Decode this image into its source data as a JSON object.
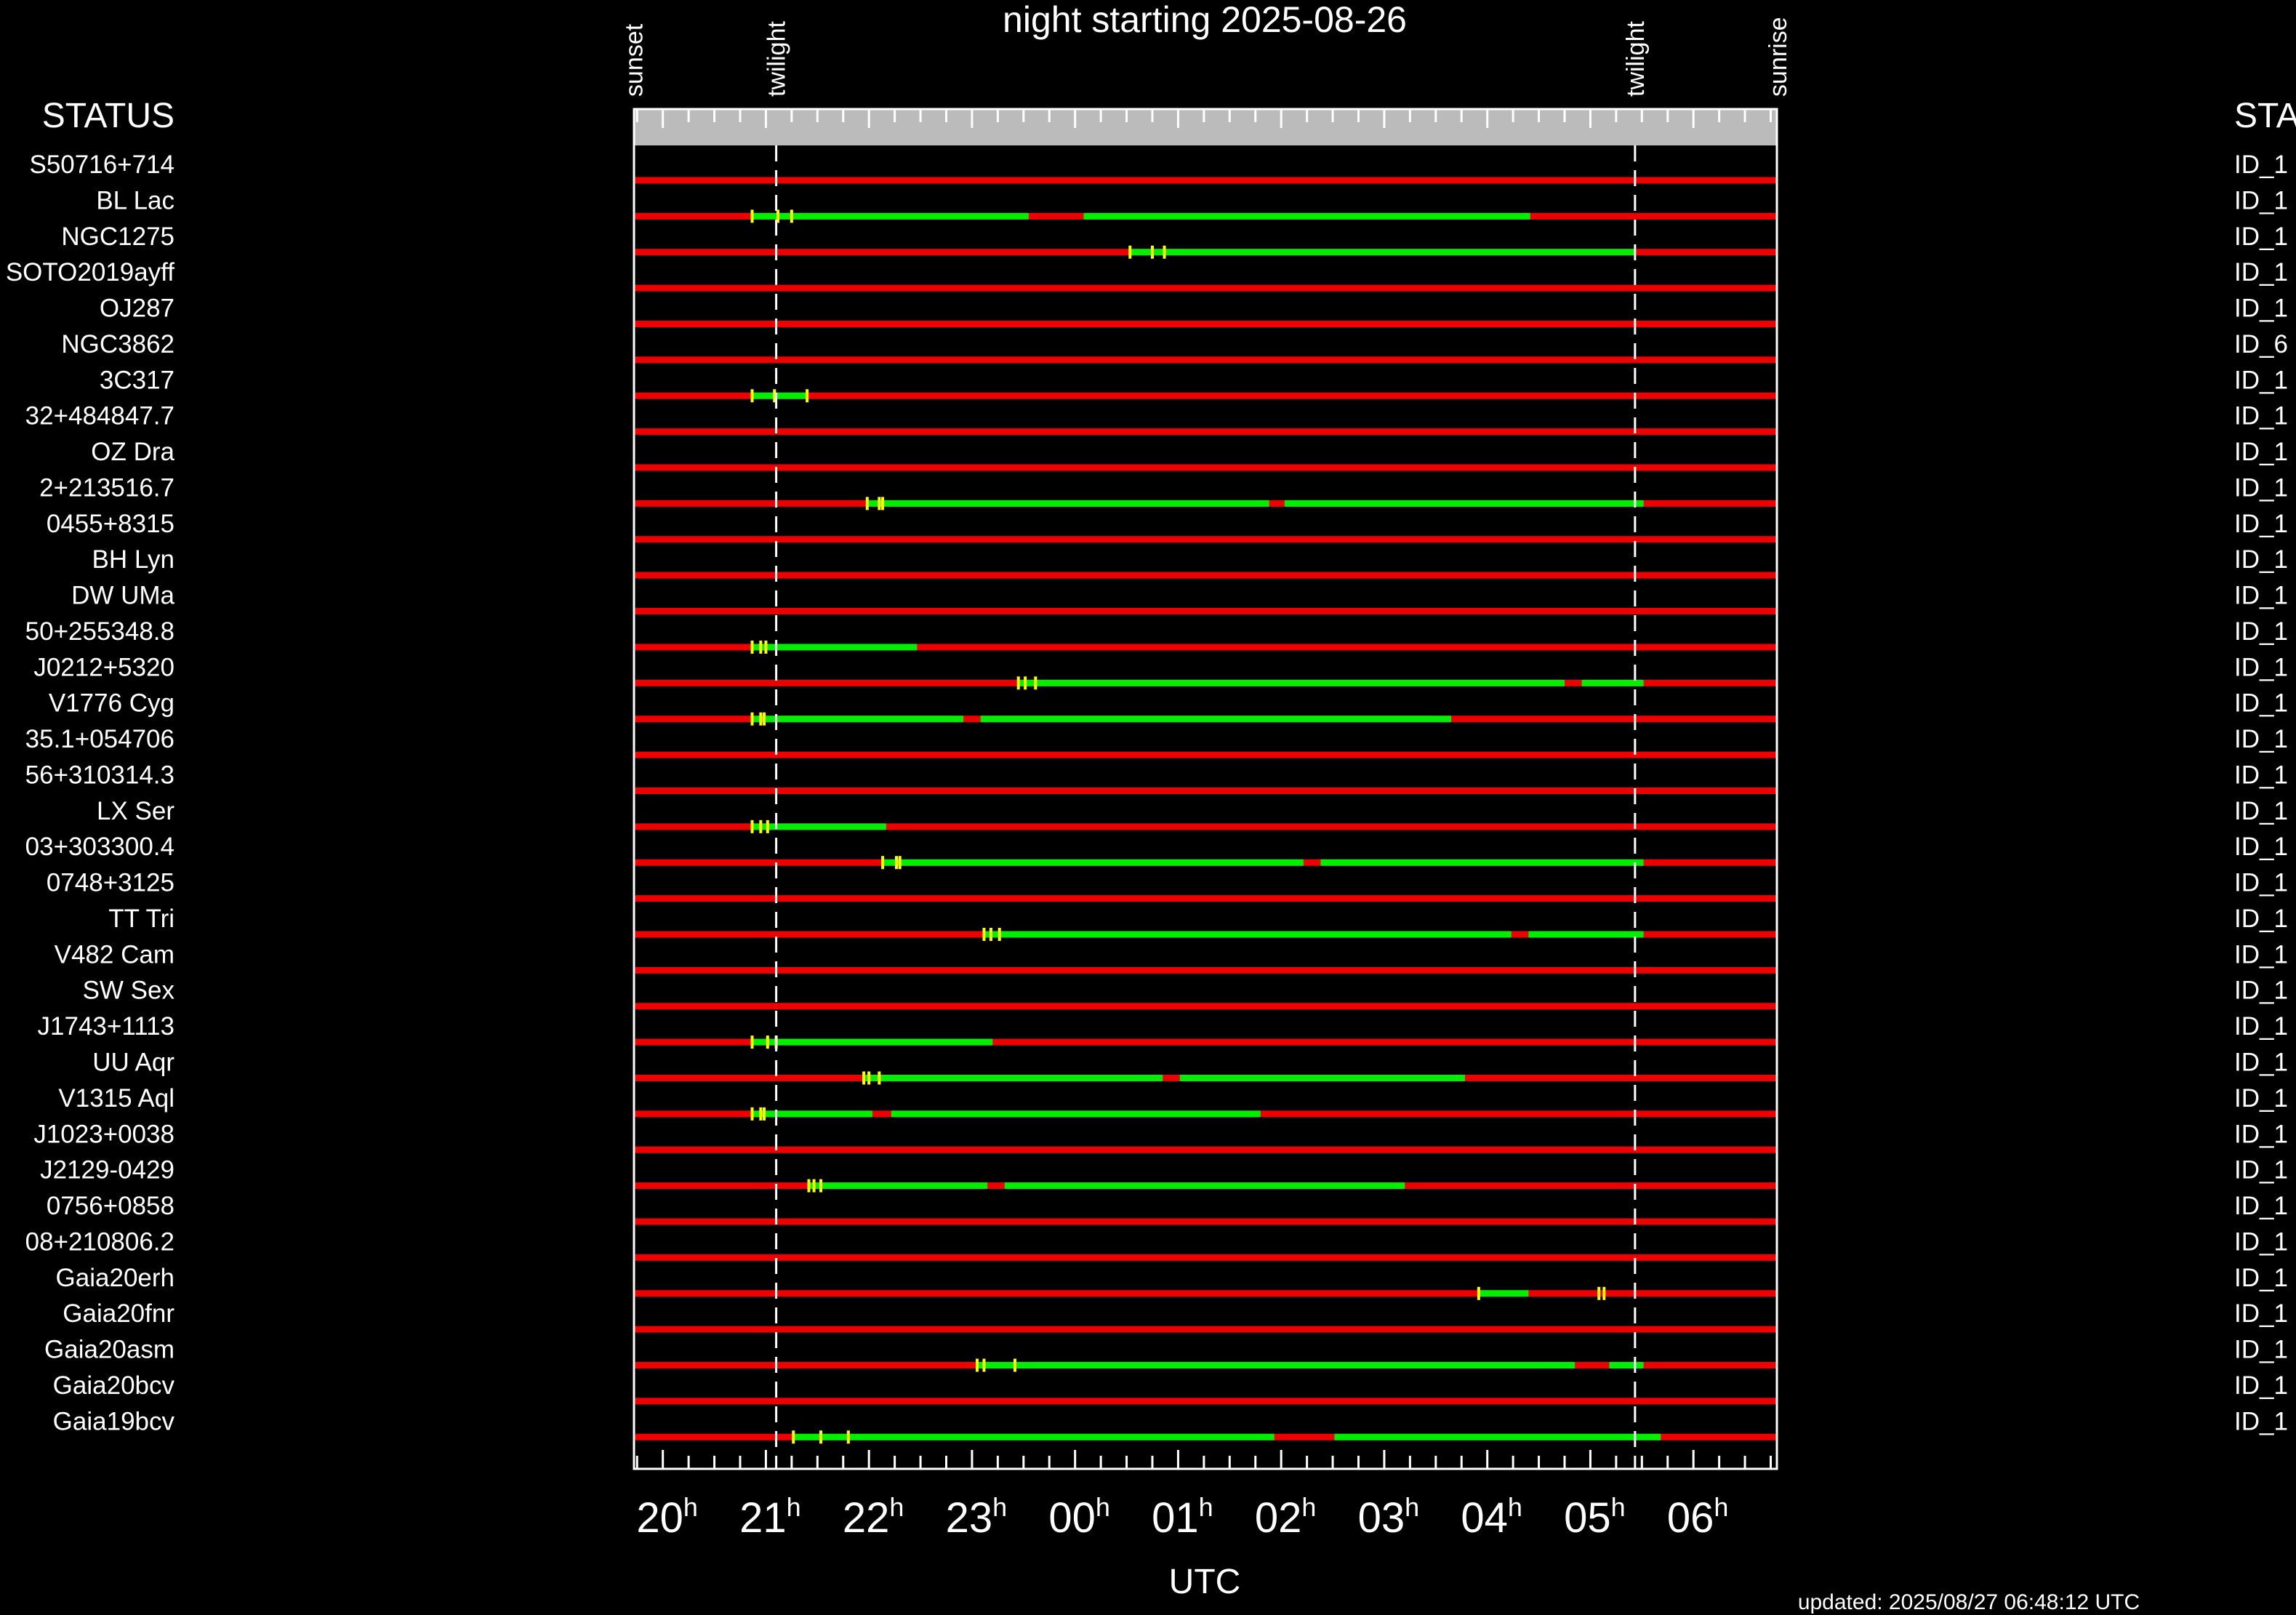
{
  "chart_data": {
    "type": "timeline",
    "title": "night starting 2025-08-26",
    "xlabel": "UTC",
    "updated": "updated: 2025/08/27 06:48:12 UTC",
    "left_header": "STATUS",
    "right_header": "STA",
    "x_range_hours": [
      19.72,
      6.81
    ],
    "tick_labels": [
      {
        "h": 20,
        "text": "20",
        "sup": "h"
      },
      {
        "h": 21,
        "text": "21",
        "sup": "h"
      },
      {
        "h": 22,
        "text": "22",
        "sup": "h"
      },
      {
        "h": 23,
        "text": "23",
        "sup": "h"
      },
      {
        "h": 0,
        "text": "00",
        "sup": "h"
      },
      {
        "h": 1,
        "text": "01",
        "sup": "h"
      },
      {
        "h": 2,
        "text": "02",
        "sup": "h"
      },
      {
        "h": 3,
        "text": "03",
        "sup": "h"
      },
      {
        "h": 4,
        "text": "04",
        "sup": "h"
      },
      {
        "h": 5,
        "text": "05",
        "sup": "h"
      },
      {
        "h": 6,
        "text": "06",
        "sup": "h"
      }
    ],
    "events": [
      {
        "label": "sunset",
        "time": "19:43",
        "dashed": false
      },
      {
        "label": "twilight",
        "time": "21:06",
        "dashed": true
      },
      {
        "label": "twilight",
        "time": "05:26",
        "dashed": true
      },
      {
        "label": "sunrise",
        "time": "06:49",
        "dashed": false
      }
    ],
    "colors": {
      "unobservable": "#ee0000",
      "observable": "#00ee00",
      "exposure": "#ffff00",
      "panel": "#bbbbbb"
    },
    "targets": [
      {
        "name": "S50716+714",
        "id": "ID_1",
        "green": [],
        "marks": []
      },
      {
        "name": "BL Lac",
        "id": "ID_1",
        "green": [
          [
            "20:52",
            "23:33"
          ],
          [
            "00:05",
            "04:25"
          ]
        ],
        "marks": [
          "20:52",
          "21:07",
          "21:15"
        ]
      },
      {
        "name": "NGC1275",
        "id": "ID_1",
        "green": [
          [
            "00:32",
            "05:26"
          ]
        ],
        "marks": [
          "00:32",
          "00:45",
          "00:52"
        ]
      },
      {
        "name": "SOTO2019ayff",
        "id": "ID_1",
        "green": [],
        "marks": []
      },
      {
        "name": "OJ287",
        "id": "ID_1",
        "green": [],
        "marks": []
      },
      {
        "name": "NGC3862",
        "id": "ID_6",
        "green": [],
        "marks": []
      },
      {
        "name": "3C317",
        "id": "ID_1",
        "green": [
          [
            "20:52",
            "21:24"
          ]
        ],
        "marks": [
          "20:52",
          "21:05",
          "21:24"
        ]
      },
      {
        "name": "32+484847.7",
        "id": "ID_1",
        "green": [],
        "marks": []
      },
      {
        "name": "OZ Dra",
        "id": "ID_1",
        "green": [],
        "marks": []
      },
      {
        "name": "2+213516.7",
        "id": "ID_1",
        "green": [
          [
            "21:59",
            "01:53"
          ],
          [
            "02:02",
            "05:31"
          ]
        ],
        "marks": [
          "21:59",
          "22:06",
          "22:08"
        ]
      },
      {
        "name": "0455+8315",
        "id": "ID_1",
        "green": [],
        "marks": []
      },
      {
        "name": "BH Lyn",
        "id": "ID_1",
        "green": [],
        "marks": []
      },
      {
        "name": "DW UMa",
        "id": "ID_1",
        "green": [],
        "marks": []
      },
      {
        "name": "50+255348.8",
        "id": "ID_1",
        "green": [
          [
            "20:52",
            "22:28"
          ]
        ],
        "marks": [
          "20:52",
          "20:57",
          "21:00"
        ]
      },
      {
        "name": "J0212+5320",
        "id": "ID_1",
        "green": [
          [
            "23:27",
            "04:45"
          ],
          [
            "04:55",
            "05:31"
          ]
        ],
        "marks": [
          "23:27",
          "23:31",
          "23:37"
        ]
      },
      {
        "name": "V1776 Cyg",
        "id": "ID_1",
        "green": [
          [
            "20:52",
            "22:55"
          ],
          [
            "23:05",
            "03:39"
          ]
        ],
        "marks": [
          "20:52",
          "20:57",
          "20:59"
        ]
      },
      {
        "name": "35.1+054706",
        "id": "ID_1",
        "green": [],
        "marks": []
      },
      {
        "name": "56+310314.3",
        "id": "ID_1",
        "green": [],
        "marks": []
      },
      {
        "name": "LX Ser",
        "id": "ID_1",
        "green": [
          [
            "20:52",
            "22:10"
          ]
        ],
        "marks": [
          "20:52",
          "20:57",
          "21:01"
        ]
      },
      {
        "name": "03+303300.4",
        "id": "ID_1",
        "green": [
          [
            "22:08",
            "02:13"
          ],
          [
            "02:23",
            "05:31"
          ]
        ],
        "marks": [
          "22:08",
          "22:16",
          "22:18"
        ]
      },
      {
        "name": "0748+3125",
        "id": "ID_1",
        "green": [],
        "marks": []
      },
      {
        "name": "TT Tri",
        "id": "ID_1",
        "green": [
          [
            "23:07",
            "04:14"
          ],
          [
            "04:24",
            "05:31"
          ]
        ],
        "marks": [
          "23:07",
          "23:11",
          "23:16"
        ]
      },
      {
        "name": "V482 Cam",
        "id": "ID_1",
        "green": [],
        "marks": []
      },
      {
        "name": "SW Sex",
        "id": "ID_1",
        "green": [],
        "marks": []
      },
      {
        "name": "J1743+1113",
        "id": "ID_1",
        "green": [
          [
            "20:52",
            "23:12"
          ]
        ],
        "marks": [
          "20:52",
          "21:01",
          "21:06"
        ]
      },
      {
        "name": "UU Aqr",
        "id": "ID_1",
        "green": [
          [
            "21:57",
            "00:51"
          ],
          [
            "01:01",
            "03:47"
          ]
        ],
        "marks": [
          "21:57",
          "22:00",
          "22:06"
        ]
      },
      {
        "name": "V1315 Aql",
        "id": "ID_1",
        "green": [
          [
            "20:52",
            "22:02"
          ],
          [
            "22:13",
            "01:48"
          ]
        ],
        "marks": [
          "20:52",
          "20:57",
          "20:59"
        ]
      },
      {
        "name": "J1023+0038",
        "id": "ID_1",
        "green": [],
        "marks": []
      },
      {
        "name": "J2129-0429",
        "id": "ID_1",
        "green": [
          [
            "21:25",
            "23:09"
          ],
          [
            "23:19",
            "03:12"
          ]
        ],
        "marks": [
          "21:25",
          "21:28",
          "21:32"
        ]
      },
      {
        "name": "0756+0858",
        "id": "ID_1",
        "green": [],
        "marks": []
      },
      {
        "name": "08+210806.2",
        "id": "ID_1",
        "green": [],
        "marks": []
      },
      {
        "name": "Gaia20erh",
        "id": "ID_1",
        "green": [
          [
            "03:55",
            "04:24"
          ]
        ],
        "marks": [
          "03:55",
          "05:05",
          "05:08"
        ]
      },
      {
        "name": "Gaia20fnr",
        "id": "ID_1",
        "green": [],
        "marks": []
      },
      {
        "name": "Gaia20asm",
        "id": "ID_1",
        "green": [
          [
            "23:03",
            "04:51"
          ],
          [
            "05:11",
            "05:31"
          ]
        ],
        "marks": [
          "23:03",
          "23:07",
          "23:25"
        ]
      },
      {
        "name": "Gaia20bcv",
        "id": "ID_1",
        "green": [],
        "marks": []
      },
      {
        "name": "Gaia19bcv",
        "id": "ID_1",
        "green": [
          [
            "21:16",
            "01:56"
          ],
          [
            "02:31",
            "05:41"
          ]
        ],
        "marks": [
          "21:16",
          "21:32",
          "21:48"
        ]
      }
    ]
  }
}
